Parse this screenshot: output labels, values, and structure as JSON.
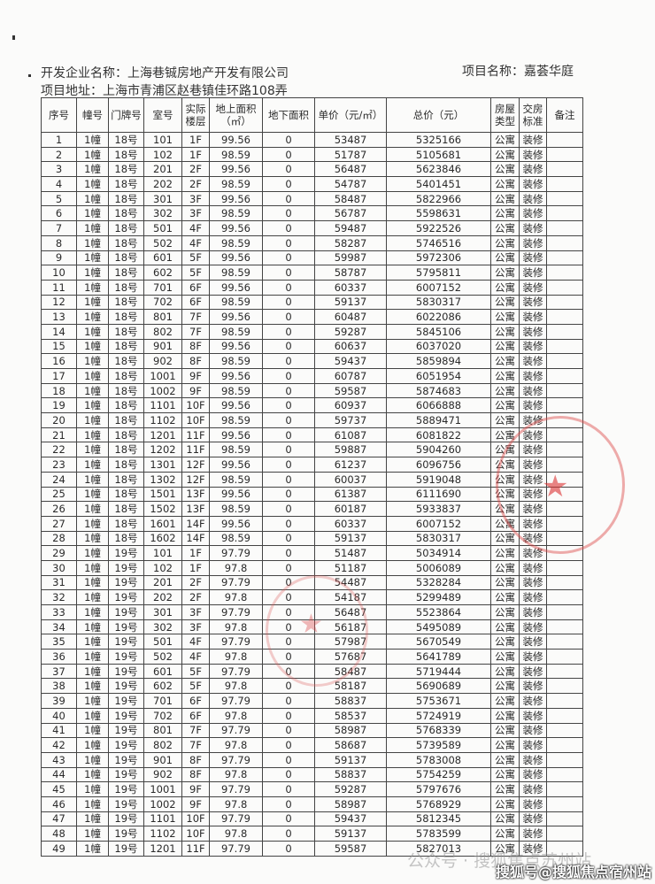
{
  "header": {
    "developer": "开发企业名称：上海巷铖房地产开发有限公司",
    "project_name": "项目名称：嘉荟华庭",
    "address": "项目地址：上海市青浦区赵巷镇佳环路108弄"
  },
  "table": {
    "columns": [
      "序号",
      "幢号",
      "门牌号",
      "室号",
      "实际楼层",
      "地上面积（㎡）",
      "地下面积",
      "单价（元/㎡）",
      "总价（元）",
      "房屋类型",
      "交房标准",
      "备注"
    ],
    "rows": [
      [
        "1",
        "1幢",
        "18号",
        "101",
        "1F",
        "99.56",
        "0",
        "53487",
        "5325166",
        "公寓",
        "装修",
        ""
      ],
      [
        "2",
        "1幢",
        "18号",
        "102",
        "1F",
        "98.59",
        "0",
        "51787",
        "5105681",
        "公寓",
        "装修",
        ""
      ],
      [
        "3",
        "1幢",
        "18号",
        "201",
        "2F",
        "99.56",
        "0",
        "56487",
        "5623846",
        "公寓",
        "装修",
        ""
      ],
      [
        "4",
        "1幢",
        "18号",
        "202",
        "2F",
        "98.59",
        "0",
        "54787",
        "5401451",
        "公寓",
        "装修",
        ""
      ],
      [
        "5",
        "1幢",
        "18号",
        "301",
        "3F",
        "99.56",
        "0",
        "58487",
        "5822966",
        "公寓",
        "装修",
        ""
      ],
      [
        "6",
        "1幢",
        "18号",
        "302",
        "3F",
        "98.59",
        "0",
        "56787",
        "5598631",
        "公寓",
        "装修",
        ""
      ],
      [
        "7",
        "1幢",
        "18号",
        "501",
        "4F",
        "99.56",
        "0",
        "59487",
        "5922526",
        "公寓",
        "装修",
        ""
      ],
      [
        "8",
        "1幢",
        "18号",
        "502",
        "4F",
        "98.59",
        "0",
        "58287",
        "5746516",
        "公寓",
        "装修",
        ""
      ],
      [
        "9",
        "1幢",
        "18号",
        "601",
        "5F",
        "99.56",
        "0",
        "59987",
        "5972306",
        "公寓",
        "装修",
        ""
      ],
      [
        "10",
        "1幢",
        "18号",
        "602",
        "5F",
        "98.59",
        "0",
        "58787",
        "5795811",
        "公寓",
        "装修",
        ""
      ],
      [
        "11",
        "1幢",
        "18号",
        "701",
        "6F",
        "99.56",
        "0",
        "60337",
        "6007152",
        "公寓",
        "装修",
        ""
      ],
      [
        "12",
        "1幢",
        "18号",
        "702",
        "6F",
        "98.59",
        "0",
        "59137",
        "5830317",
        "公寓",
        "装修",
        ""
      ],
      [
        "13",
        "1幢",
        "18号",
        "801",
        "7F",
        "99.56",
        "0",
        "60487",
        "6022086",
        "公寓",
        "装修",
        ""
      ],
      [
        "14",
        "1幢",
        "18号",
        "802",
        "7F",
        "98.59",
        "0",
        "59287",
        "5845106",
        "公寓",
        "装修",
        ""
      ],
      [
        "15",
        "1幢",
        "18号",
        "901",
        "8F",
        "99.56",
        "0",
        "60637",
        "6037020",
        "公寓",
        "装修",
        ""
      ],
      [
        "16",
        "1幢",
        "18号",
        "902",
        "8F",
        "98.59",
        "0",
        "59437",
        "5859894",
        "公寓",
        "装修",
        ""
      ],
      [
        "17",
        "1幢",
        "18号",
        "1001",
        "9F",
        "99.56",
        "0",
        "60787",
        "6051954",
        "公寓",
        "装修",
        ""
      ],
      [
        "18",
        "1幢",
        "18号",
        "1002",
        "9F",
        "98.59",
        "0",
        "59587",
        "5874683",
        "公寓",
        "装修",
        ""
      ],
      [
        "19",
        "1幢",
        "18号",
        "1101",
        "10F",
        "99.56",
        "0",
        "60937",
        "6066888",
        "公寓",
        "装修",
        ""
      ],
      [
        "20",
        "1幢",
        "18号",
        "1102",
        "10F",
        "98.59",
        "0",
        "59737",
        "5889471",
        "公寓",
        "装修",
        ""
      ],
      [
        "21",
        "1幢",
        "18号",
        "1201",
        "11F",
        "99.56",
        "0",
        "61087",
        "6081822",
        "公寓",
        "装修",
        ""
      ],
      [
        "22",
        "1幢",
        "18号",
        "1202",
        "11F",
        "98.59",
        "0",
        "59887",
        "5904260",
        "公寓",
        "装修",
        ""
      ],
      [
        "23",
        "1幢",
        "18号",
        "1301",
        "12F",
        "99.56",
        "0",
        "61237",
        "6096756",
        "公寓",
        "装修",
        ""
      ],
      [
        "24",
        "1幢",
        "18号",
        "1302",
        "12F",
        "98.59",
        "0",
        "60037",
        "5919048",
        "公寓",
        "装修",
        ""
      ],
      [
        "25",
        "1幢",
        "18号",
        "1501",
        "13F",
        "99.56",
        "0",
        "61387",
        "6111690",
        "公寓",
        "装修",
        ""
      ],
      [
        "26",
        "1幢",
        "18号",
        "1502",
        "13F",
        "98.59",
        "0",
        "60187",
        "5933837",
        "公寓",
        "装修",
        ""
      ],
      [
        "27",
        "1幢",
        "18号",
        "1601",
        "14F",
        "99.56",
        "0",
        "60337",
        "6007152",
        "公寓",
        "装修",
        ""
      ],
      [
        "28",
        "1幢",
        "18号",
        "1602",
        "14F",
        "98.59",
        "0",
        "59137",
        "5830317",
        "公寓",
        "装修",
        ""
      ],
      [
        "29",
        "1幢",
        "19号",
        "101",
        "1F",
        "97.79",
        "0",
        "51487",
        "5034914",
        "公寓",
        "装修",
        ""
      ],
      [
        "30",
        "1幢",
        "19号",
        "102",
        "1F",
        "97.8",
        "0",
        "51187",
        "5006089",
        "公寓",
        "装修",
        ""
      ],
      [
        "31",
        "1幢",
        "19号",
        "201",
        "2F",
        "97.79",
        "0",
        "54487",
        "5328284",
        "公寓",
        "装修",
        ""
      ],
      [
        "32",
        "1幢",
        "19号",
        "202",
        "2F",
        "97.8",
        "0",
        "54187",
        "5299489",
        "公寓",
        "装修",
        ""
      ],
      [
        "33",
        "1幢",
        "19号",
        "301",
        "3F",
        "97.79",
        "0",
        "56487",
        "5523864",
        "公寓",
        "装修",
        ""
      ],
      [
        "34",
        "1幢",
        "19号",
        "302",
        "3F",
        "97.8",
        "0",
        "56187",
        "5495089",
        "公寓",
        "装修",
        ""
      ],
      [
        "35",
        "1幢",
        "19号",
        "501",
        "4F",
        "97.79",
        "0",
        "57987",
        "5670549",
        "公寓",
        "装修",
        ""
      ],
      [
        "36",
        "1幢",
        "19号",
        "502",
        "4F",
        "97.8",
        "0",
        "57687",
        "5641789",
        "公寓",
        "装修",
        ""
      ],
      [
        "37",
        "1幢",
        "19号",
        "601",
        "5F",
        "97.79",
        "0",
        "58487",
        "5719444",
        "公寓",
        "装修",
        ""
      ],
      [
        "38",
        "1幢",
        "19号",
        "602",
        "5F",
        "97.8",
        "0",
        "58187",
        "5690689",
        "公寓",
        "装修",
        ""
      ],
      [
        "39",
        "1幢",
        "19号",
        "701",
        "6F",
        "97.79",
        "0",
        "58837",
        "5753671",
        "公寓",
        "装修",
        ""
      ],
      [
        "40",
        "1幢",
        "19号",
        "702",
        "6F",
        "97.8",
        "0",
        "58537",
        "5724919",
        "公寓",
        "装修",
        ""
      ],
      [
        "41",
        "1幢",
        "19号",
        "801",
        "7F",
        "97.79",
        "0",
        "58987",
        "5768339",
        "公寓",
        "装修",
        ""
      ],
      [
        "42",
        "1幢",
        "19号",
        "802",
        "7F",
        "97.8",
        "0",
        "58687",
        "5739589",
        "公寓",
        "装修",
        ""
      ],
      [
        "43",
        "1幢",
        "19号",
        "901",
        "8F",
        "97.79",
        "0",
        "59137",
        "5783008",
        "公寓",
        "装修",
        ""
      ],
      [
        "44",
        "1幢",
        "19号",
        "902",
        "8F",
        "97.8",
        "0",
        "58837",
        "5754259",
        "公寓",
        "装修",
        ""
      ],
      [
        "45",
        "1幢",
        "19号",
        "1001",
        "9F",
        "97.79",
        "0",
        "59287",
        "5797676",
        "公寓",
        "装修",
        ""
      ],
      [
        "46",
        "1幢",
        "19号",
        "1002",
        "9F",
        "97.8",
        "0",
        "58987",
        "5768929",
        "公寓",
        "装修",
        ""
      ],
      [
        "47",
        "1幢",
        "19号",
        "1101",
        "10F",
        "97.79",
        "0",
        "59437",
        "5812345",
        "公寓",
        "装修",
        ""
      ],
      [
        "48",
        "1幢",
        "19号",
        "1102",
        "10F",
        "97.8",
        "0",
        "59137",
        "5783599",
        "公寓",
        "装修",
        ""
      ],
      [
        "49",
        "1幢",
        "19号",
        "1201",
        "11F",
        "97.79",
        "0",
        "59587",
        "5827013",
        "公寓",
        "装修",
        ""
      ]
    ]
  },
  "stamp_color": "#dc4646",
  "watermarks": {
    "wechat": "公众号 · 搜狐焦点苏州站",
    "sohu": "搜狐号@搜狐焦点宿州站"
  }
}
